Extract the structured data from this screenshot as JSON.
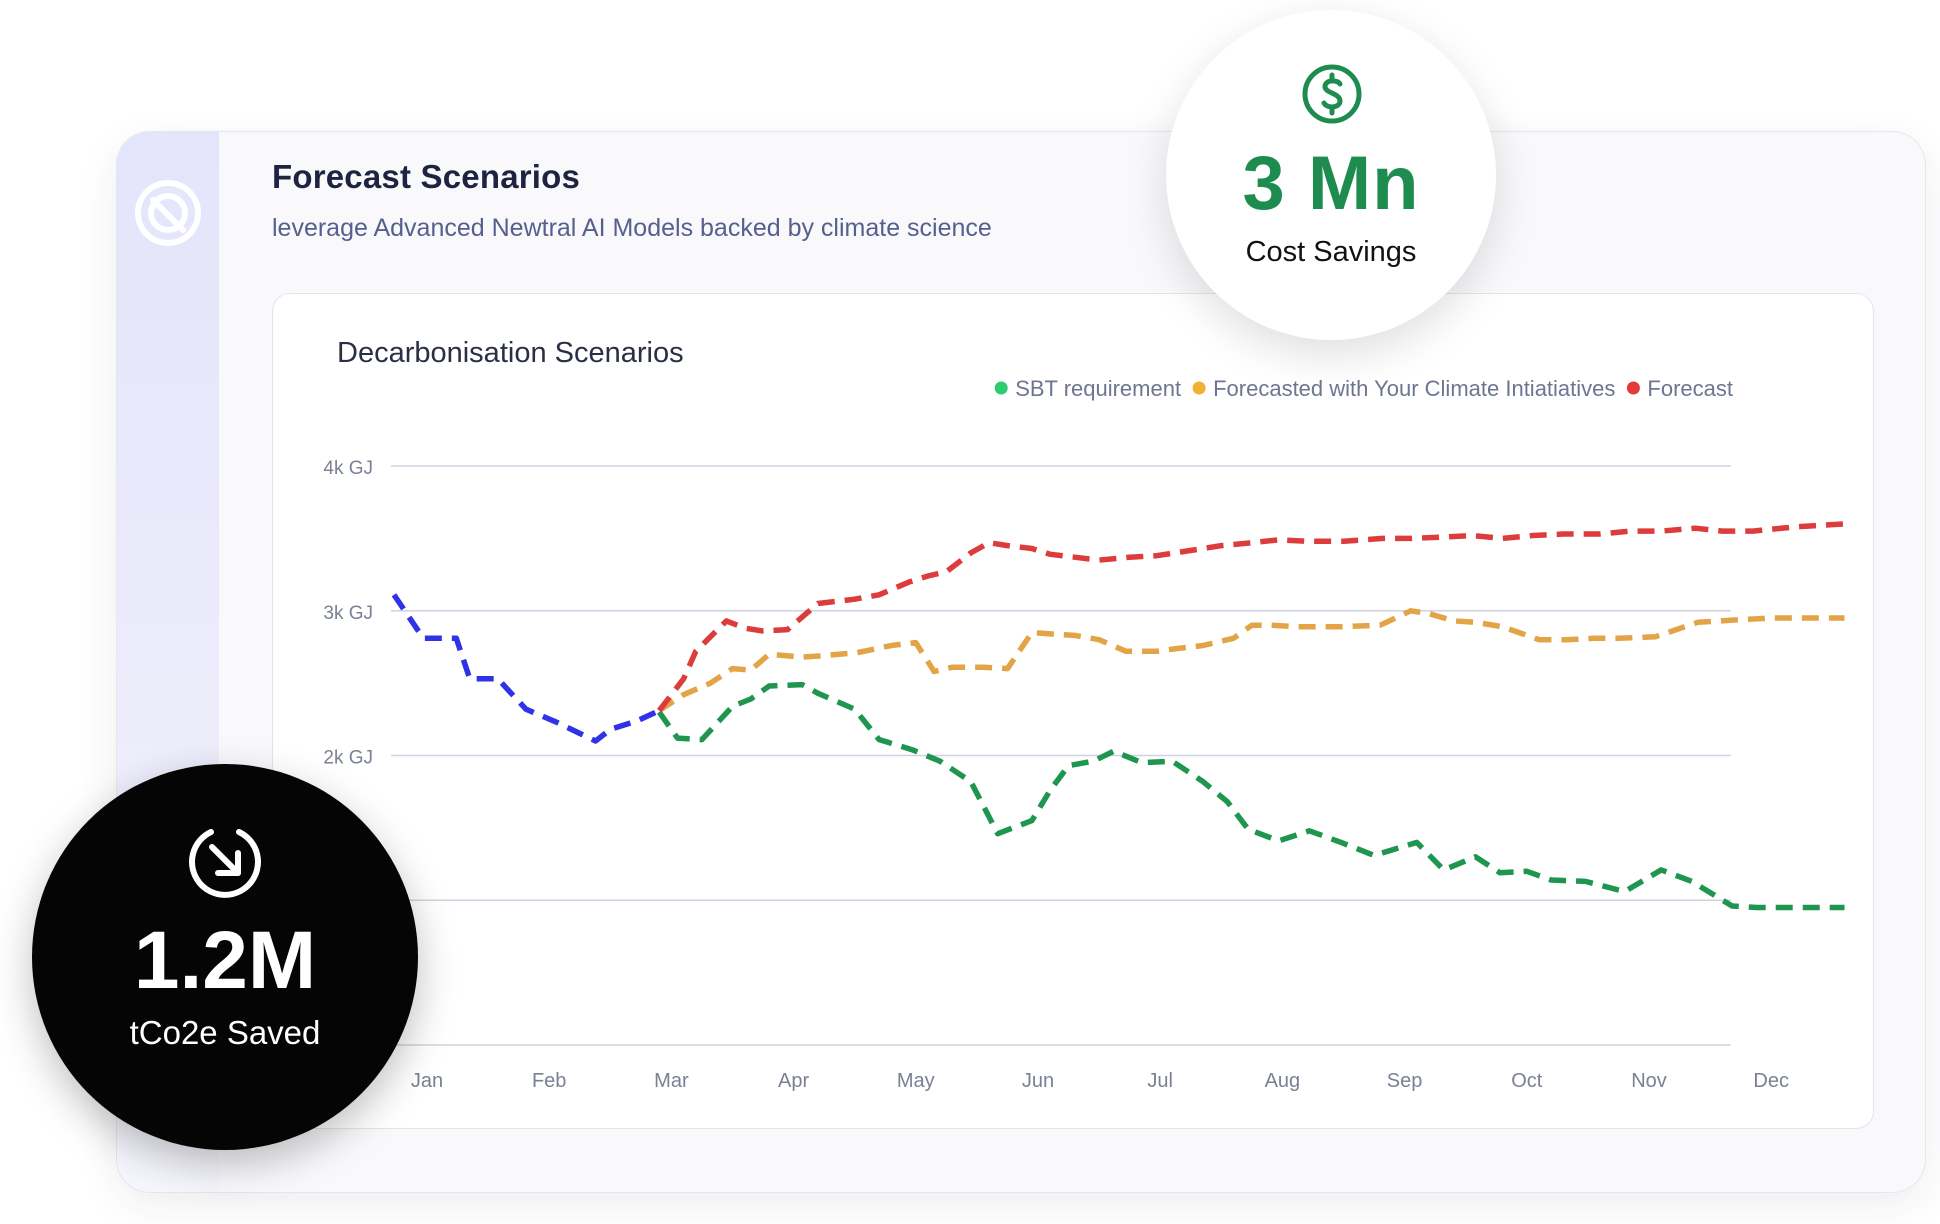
{
  "header": {
    "title": "Forecast Scenarios",
    "subtitle": "leverage Advanced Newtral AI Models backed by climate science"
  },
  "badges": {
    "savings_value": "3 Mn",
    "savings_label": "Cost Savings",
    "emissions_value": "1.2M",
    "emissions_label": "tCo2e Saved"
  },
  "icons": {
    "logo": "newtral-logo-icon",
    "savings": "dollar-circle-icon",
    "emissions": "arrow-down-right-circle-icon"
  },
  "colors": {
    "sbt": "#1f9650",
    "initiatives": "#e3a447",
    "forecast": "#dd3c3c",
    "history": "#2f32e6",
    "legend_sbt_dot": "#2ecc71",
    "legend_initiatives_dot": "#f0b030",
    "legend_forecast_dot": "#e33b3b",
    "savings_accent": "#1d8c4e"
  },
  "chart_data": {
    "type": "line",
    "title": "Decarbonisation Scenarios",
    "xlabel": "",
    "ylabel": "",
    "x_ticks": [
      "Jan",
      "Feb",
      "Mar",
      "Apr",
      "May",
      "Jun",
      "Jul",
      "Aug",
      "Sep",
      "Oct",
      "Nov",
      "Dec"
    ],
    "y_ticks": [
      {
        "value": 4000,
        "label": "4k GJ"
      },
      {
        "value": 3000,
        "label": "3k GJ"
      },
      {
        "value": 2000,
        "label": "2k GJ"
      },
      {
        "value": 1000,
        "label": ""
      },
      {
        "value": 0,
        "label": ""
      }
    ],
    "ylim": [
      0,
      4000
    ],
    "xlim": [
      0.7,
      12.6
    ],
    "grid": true,
    "legend_position": "top-right",
    "legend": [
      "SBT requirement",
      "Forecasted with Your Climate Intiatiatives",
      "Forecast"
    ],
    "series": [
      {
        "key": "history",
        "color_key": "history",
        "x": [
          0.73,
          0.97,
          1.24,
          1.35,
          1.58,
          1.7,
          1.81,
          2.06,
          2.38,
          2.5,
          2.72,
          2.9
        ],
        "y": [
          3110,
          2810,
          2810,
          2530,
          2530,
          2420,
          2320,
          2230,
          2100,
          2180,
          2240,
          2310
        ]
      },
      {
        "name": "SBT requirement",
        "color_key": "sbt",
        "x": [
          2.9,
          3.05,
          3.25,
          3.5,
          3.65,
          3.8,
          4.07,
          4.2,
          4.5,
          4.7,
          4.97,
          5.2,
          5.45,
          5.67,
          5.95,
          6.1,
          6.25,
          6.45,
          6.62,
          6.85,
          7.1,
          7.35,
          7.55,
          7.72,
          7.97,
          8.22,
          8.48,
          8.75,
          9.1,
          9.32,
          9.58,
          9.78,
          10.0,
          10.2,
          10.48,
          10.8,
          11.1,
          11.35,
          11.68,
          11.88,
          12.22,
          12.48,
          12.6
        ],
        "y": [
          2300,
          2120,
          2110,
          2340,
          2390,
          2480,
          2490,
          2430,
          2320,
          2110,
          2040,
          1960,
          1820,
          1460,
          1550,
          1760,
          1930,
          1960,
          2030,
          1950,
          1960,
          1820,
          1680,
          1490,
          1410,
          1480,
          1400,
          1310,
          1400,
          1210,
          1300,
          1190,
          1200,
          1140,
          1130,
          1060,
          1210,
          1130,
          960,
          950,
          950,
          950,
          950
        ]
      },
      {
        "name": "Forecasted with Your Climate Intiatiatives",
        "color_key": "initiatives",
        "x": [
          2.9,
          3.1,
          3.32,
          3.5,
          3.65,
          3.8,
          4.07,
          4.25,
          4.52,
          4.8,
          5.0,
          5.15,
          5.3,
          5.55,
          5.75,
          5.95,
          6.1,
          6.3,
          6.5,
          6.72,
          6.97,
          7.15,
          7.35,
          7.6,
          7.75,
          7.9,
          8.12,
          8.48,
          8.8,
          9.05,
          9.2,
          9.4,
          9.58,
          9.8,
          10.1,
          10.32,
          10.55,
          10.75,
          11.05,
          11.4,
          11.78,
          12.0,
          12.6
        ],
        "y": [
          2310,
          2420,
          2500,
          2600,
          2590,
          2700,
          2680,
          2690,
          2710,
          2760,
          2780,
          2580,
          2610,
          2610,
          2600,
          2850,
          2840,
          2830,
          2800,
          2720,
          2720,
          2740,
          2760,
          2810,
          2900,
          2900,
          2890,
          2890,
          2900,
          3000,
          2980,
          2930,
          2920,
          2890,
          2800,
          2800,
          2810,
          2810,
          2820,
          2920,
          2940,
          2950,
          2950
        ]
      },
      {
        "name": "Forecast",
        "color_key": "forecast",
        "x": [
          2.9,
          3.1,
          3.2,
          3.45,
          3.6,
          3.75,
          3.95,
          4.2,
          4.5,
          4.7,
          4.95,
          5.1,
          5.25,
          5.45,
          5.6,
          5.75,
          5.95,
          6.1,
          6.3,
          6.5,
          6.75,
          6.97,
          7.2,
          7.5,
          7.75,
          7.97,
          8.2,
          8.5,
          8.82,
          9.05,
          9.35,
          9.55,
          9.8,
          10.05,
          10.3,
          10.6,
          10.85,
          11.1,
          11.38,
          11.6,
          11.85,
          12.2,
          12.6
        ],
        "y": [
          2310,
          2530,
          2720,
          2930,
          2880,
          2860,
          2870,
          3050,
          3080,
          3110,
          3200,
          3240,
          3270,
          3400,
          3470,
          3450,
          3430,
          3390,
          3370,
          3350,
          3370,
          3380,
          3410,
          3450,
          3470,
          3490,
          3480,
          3480,
          3500,
          3500,
          3510,
          3520,
          3500,
          3520,
          3530,
          3530,
          3550,
          3550,
          3570,
          3550,
          3550,
          3580,
          3600
        ]
      }
    ]
  }
}
